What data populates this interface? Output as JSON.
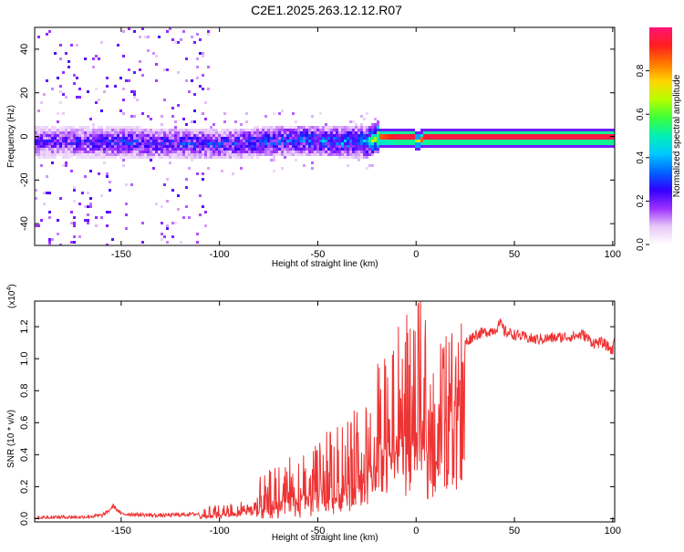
{
  "page_title": "C2E1.2025.263.12.12.R07",
  "chart_data": [
    {
      "type": "heatmap",
      "title": "C2E1.2025.263.12.12.R07",
      "xlabel": "Height of straight line (km)",
      "ylabel": "Frequency (Hz)",
      "xlim": [
        -194,
        101
      ],
      "ylim": [
        -50,
        50
      ],
      "x_ticks": [
        -150,
        -100,
        -50,
        0,
        50,
        100
      ],
      "x_tick_labels": [
        "-150",
        "-100",
        "-50",
        "0",
        "50",
        "100"
      ],
      "y_ticks": [
        -40,
        -20,
        0,
        20,
        40
      ],
      "y_tick_labels": [
        "-40",
        "-20",
        "0",
        "20",
        "40"
      ],
      "ridge": {
        "description_height_km": [
          -194,
          -150,
          -100,
          -60,
          -40,
          -25,
          -20,
          -10,
          -2,
          0,
          3,
          10,
          101
        ],
        "center_frequency_hz": [
          -2,
          -2,
          -3,
          -1,
          -2,
          -2,
          0,
          0,
          0,
          -2,
          0,
          0,
          0
        ],
        "dominant_amplitude": [
          0.25,
          0.3,
          0.3,
          0.35,
          0.4,
          0.45,
          0.85,
          0.95,
          0.95,
          0.6,
          0.95,
          0.95,
          0.95
        ]
      },
      "colorbar": {
        "label": "Normalized spectral amplitude",
        "range": [
          0,
          1
        ],
        "ticks": [
          0.0,
          0.2,
          0.4,
          0.6,
          0.8
        ],
        "tick_labels": [
          "0.0",
          "0.2",
          "0.4",
          "0.6",
          "0.8"
        ],
        "colors": [
          "#ffffff",
          "#e8c8f8",
          "#9b30ff",
          "#3200ff",
          "#0064ff",
          "#00c8ff",
          "#00f0b4",
          "#3cff3c",
          "#b4ff00",
          "#ffd700",
          "#ff7800",
          "#ff1e1e",
          "#ff1478"
        ]
      }
    },
    {
      "type": "line",
      "title": "",
      "xlabel": "Height of straight line (km)",
      "ylabel": "SNR (10 * v/v)",
      "y_multiplier_label": "(x10",
      "y_multiplier_exp": "4",
      "y_multiplier_close": ")",
      "xlim": [
        -194,
        101
      ],
      "ylim": [
        -0.02,
        1.36
      ],
      "line_color": "#ee3333",
      "x_ticks": [
        -150,
        -100,
        -50,
        0,
        50,
        100
      ],
      "x_tick_labels": [
        "-150",
        "-100",
        "-50",
        "0",
        "50",
        "100"
      ],
      "y_ticks": [
        0.0,
        0.2,
        0.4,
        0.6,
        0.8,
        1.0,
        1.2
      ],
      "y_tick_labels": [
        "0.0",
        "0.2",
        "0.4",
        "0.6",
        "0.8",
        "1.0",
        "1.2"
      ],
      "series": [
        {
          "name": "SNR",
          "x": [
            -194,
            -180,
            -170,
            -160,
            -157,
            -154,
            -150,
            -130,
            -110,
            -100,
            -90,
            -80,
            -75,
            -70,
            -60,
            -50,
            -40,
            -30,
            -25,
            -20,
            -15,
            -10,
            -5,
            0,
            5,
            7,
            10,
            15,
            20,
            25,
            30,
            40,
            43,
            45,
            50,
            60,
            70,
            80,
            85,
            90,
            95,
            100,
            101
          ],
          "y": [
            0.005,
            0.01,
            0.01,
            0.02,
            0.04,
            0.08,
            0.03,
            0.02,
            0.03,
            0.04,
            0.06,
            0.09,
            0.12,
            0.15,
            0.2,
            0.25,
            0.3,
            0.38,
            0.45,
            0.55,
            0.62,
            0.7,
            0.75,
            0.8,
            0.85,
            0.72,
            0.9,
            0.95,
            1.0,
            1.1,
            1.15,
            1.18,
            1.22,
            1.17,
            1.15,
            1.12,
            1.13,
            1.14,
            1.15,
            1.1,
            1.1,
            1.05,
            1.15
          ]
        }
      ]
    }
  ]
}
